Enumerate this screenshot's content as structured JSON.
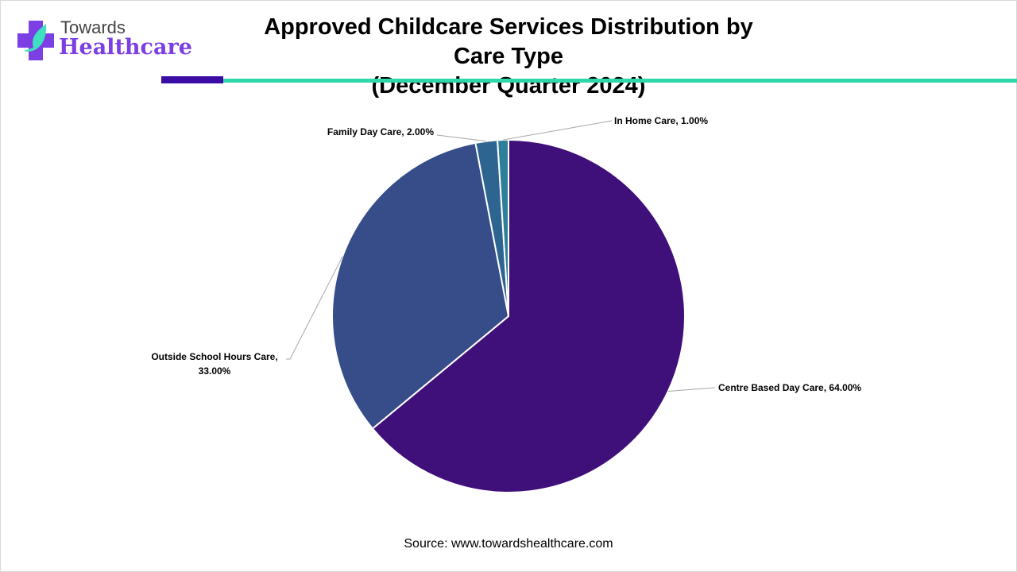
{
  "logo": {
    "top": "Towards",
    "bottom": "Healthcare"
  },
  "title": {
    "line1": "Approved Childcare Services Distribution by Care Type",
    "line2": "(December Quarter 2024)"
  },
  "source": "Source: www.towardshealthcare.com",
  "chart_data": {
    "type": "pie",
    "title": "Approved Childcare Services Distribution by Care Type (December Quarter 2024)",
    "start_angle": "12 o'clock, clockwise",
    "slices": [
      {
        "label": "Centre Based Day Care",
        "value": 64.0,
        "display": "Centre Based Day Care, 64.00%",
        "color": "#3f0f7a"
      },
      {
        "label": "Outside School Hours Care",
        "value": 33.0,
        "display_lines": [
          "Outside School Hours Care,",
          "33.00%"
        ],
        "color": "#364d8a"
      },
      {
        "label": "Family Day Care",
        "value": 2.0,
        "display": "Family Day Care, 2.00%",
        "color": "#2e6590"
      },
      {
        "label": "In Home Care",
        "value": 1.0,
        "display": "In Home Care, 1.00%",
        "color": "#2e7f98"
      }
    ]
  }
}
